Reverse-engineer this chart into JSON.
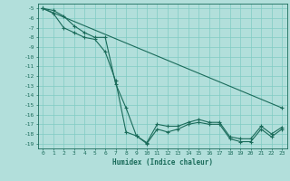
{
  "xlabel": "Humidex (Indice chaleur)",
  "bg_color": "#b2dfdb",
  "line_color": "#1a6b5a",
  "grid_color": "#80cbc4",
  "xlim": [
    -0.5,
    23.5
  ],
  "ylim": [
    -19.5,
    -4.5
  ],
  "yticks": [
    -5,
    -6,
    -7,
    -8,
    -9,
    -10,
    -11,
    -12,
    -13,
    -14,
    -15,
    -16,
    -17,
    -18,
    -19
  ],
  "xticks": [
    0,
    1,
    2,
    3,
    4,
    5,
    6,
    7,
    8,
    9,
    10,
    11,
    12,
    13,
    14,
    15,
    16,
    17,
    18,
    19,
    20,
    21,
    22,
    23
  ],
  "line1_x": [
    0,
    1,
    2,
    3,
    4,
    5,
    6,
    7,
    8,
    9,
    10,
    11,
    12,
    13,
    14,
    15,
    16,
    17,
    18,
    19,
    20,
    21,
    22,
    23
  ],
  "line1_y": [
    -5.0,
    -5.2,
    -5.8,
    -6.8,
    -7.5,
    -8.0,
    -8.0,
    -12.8,
    -15.3,
    -18.2,
    -18.9,
    -17.0,
    -17.2,
    -17.2,
    -16.8,
    -16.5,
    -16.8,
    -16.8,
    -18.3,
    -18.5,
    -18.5,
    -17.2,
    -18.0,
    -17.3
  ],
  "line2_x": [
    0,
    1,
    2,
    3,
    4,
    5,
    6,
    7,
    8,
    9,
    10,
    11,
    12,
    13,
    14,
    15,
    16,
    17,
    18,
    19,
    20,
    21,
    22,
    23
  ],
  "line2_y": [
    -5.0,
    -5.5,
    -7.0,
    -7.5,
    -8.0,
    -8.2,
    -9.5,
    -12.5,
    -17.8,
    -18.2,
    -19.0,
    -17.5,
    -17.8,
    -17.5,
    -17.0,
    -16.8,
    -17.0,
    -17.0,
    -18.5,
    -18.8,
    -18.8,
    -17.5,
    -18.3,
    -17.5
  ],
  "line3_x": [
    0,
    23
  ],
  "line3_y": [
    -5.0,
    -15.3
  ]
}
